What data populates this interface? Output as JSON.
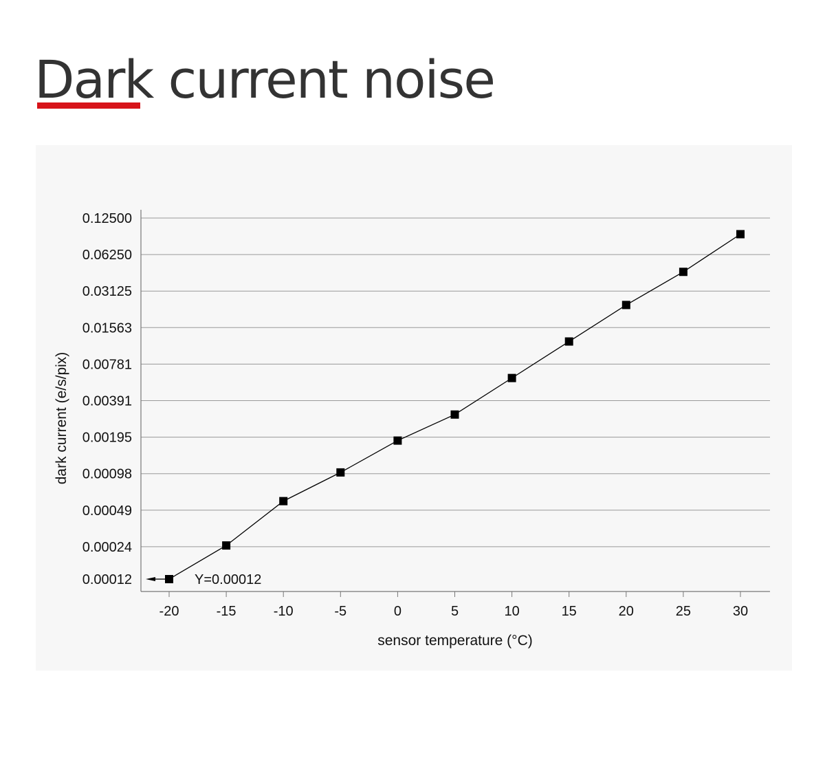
{
  "page": {
    "title": "Dark current noise",
    "accent_color": "#d7141a"
  },
  "chart_data": {
    "type": "line",
    "title": "",
    "xlabel": "sensor temperature (°C)",
    "ylabel": "dark current  (e/s/pix)",
    "y_scale": "log2",
    "x_ticks": [
      -20,
      -15,
      -10,
      -5,
      0,
      5,
      10,
      15,
      20,
      25,
      30
    ],
    "y_ticks": [
      "0.12500",
      "0.06250",
      "0.03125",
      "0.01563",
      "0.00781",
      "0.00391",
      "0.00195",
      "0.00098",
      "0.00049",
      "0.00024",
      "0.00012"
    ],
    "grid": "horizontal",
    "marker": "square",
    "series": [
      {
        "x": [
          -20,
          -15,
          -10,
          -5,
          0,
          5,
          10,
          15,
          20,
          25,
          30
        ],
        "y": [
          0.00012,
          0.00025,
          0.00058,
          0.001,
          0.00183,
          0.003,
          0.006,
          0.012,
          0.024,
          0.045,
          0.092
        ]
      }
    ],
    "annotation": {
      "text": "Y=0.00012",
      "x": -20,
      "y": 0.00012,
      "arrow": "left"
    }
  }
}
